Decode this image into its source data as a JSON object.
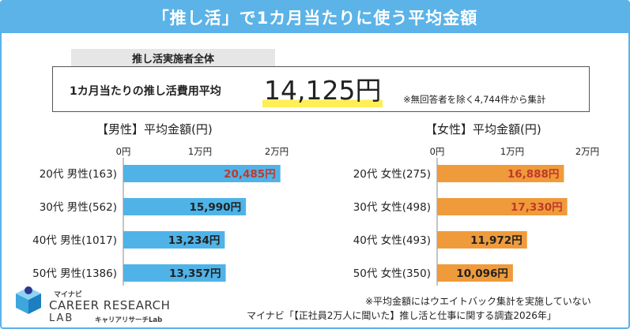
{
  "title": "「推し活」で1カ月当たりに使う平均金額",
  "overall": {
    "label": "推し活実施者全体",
    "caption": "1カ月当たりの推し活費用平均",
    "value": "14,125円",
    "note": "※無回答者を除く4,744件から集計"
  },
  "colors": {
    "header": "#5bb3e8",
    "male_bar": "#4fb3e8",
    "female_bar": "#ef9b3b",
    "highlight_text": "#c0392b"
  },
  "chart_data": [
    {
      "type": "bar",
      "orientation": "horizontal",
      "title": "【男性】平均金額(円)",
      "tick_labels": [
        "0円",
        "1万円",
        "2万円"
      ],
      "xlim": [
        0,
        20000
      ],
      "categories": [
        "20代 男性(163)",
        "30代 男性(562)",
        "40代 男性(1017)",
        "50代 男性(1386)"
      ],
      "values": [
        20485,
        15990,
        13234,
        13357
      ],
      "value_labels": [
        "20,485円",
        "15,990円",
        "13,234円",
        "13,357円"
      ],
      "highlight": [
        true,
        false,
        false,
        false
      ]
    },
    {
      "type": "bar",
      "orientation": "horizontal",
      "title": "【女性】平均金額(円)",
      "tick_labels": [
        "0円",
        "1万円",
        "2万円"
      ],
      "xlim": [
        0,
        20000
      ],
      "categories": [
        "20代 女性(275)",
        "30代 女性(498)",
        "40代 女性(493)",
        "50代 女性(350)"
      ],
      "values": [
        16888,
        17330,
        11972,
        10096
      ],
      "value_labels": [
        "16,888円",
        "17,330円",
        "11,972円",
        "10,096円"
      ],
      "highlight": [
        true,
        true,
        false,
        false
      ]
    }
  ],
  "logo": {
    "small": "マイナビ",
    "main": "CAREER RESEARCH",
    "lab": "LAB",
    "sub": "キャリアリサーチLab",
    "icon": "cube-logo-icon"
  },
  "footer": {
    "note": "※平均金額にはウエイトバック集計を実施していない",
    "source": "マイナビ「【正社員2万人に聞いた】推し活と仕事に関する調査2026年」"
  }
}
